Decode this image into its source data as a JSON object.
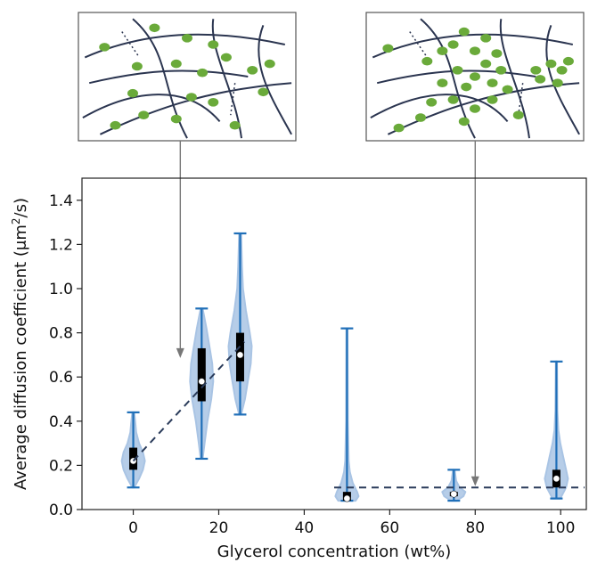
{
  "chart_data": {
    "type": "violin",
    "xlabel": "Glycerol concentration (wt%)",
    "ylabel": "Average diffusion coefficient (μm²/s)",
    "ylabel_parts": {
      "before": "Average diffusion coefficient (μm",
      "sup": "2",
      "after": "/s)"
    },
    "xlim": [
      -12,
      106
    ],
    "ylim": [
      0,
      1.5
    ],
    "xticks": [
      0,
      20,
      40,
      60,
      80,
      100
    ],
    "yticks": [
      0.0,
      0.2,
      0.4,
      0.6,
      0.8,
      1.0,
      1.2,
      1.4
    ],
    "violins": [
      {
        "x": 0,
        "min": 0.1,
        "max": 0.44,
        "q1": 0.18,
        "q3": 0.28,
        "median": 0.22,
        "body": [
          [
            0.1,
            0.5
          ],
          [
            0.14,
            3
          ],
          [
            0.18,
            5
          ],
          [
            0.22,
            6
          ],
          [
            0.26,
            5
          ],
          [
            0.3,
            3
          ],
          [
            0.35,
            1.5
          ],
          [
            0.4,
            1
          ],
          [
            0.44,
            0.5
          ]
        ]
      },
      {
        "x": 16,
        "min": 0.23,
        "max": 0.91,
        "q1": 0.49,
        "q3": 0.73,
        "median": 0.58,
        "body": [
          [
            0.23,
            0.5
          ],
          [
            0.3,
            1.5
          ],
          [
            0.4,
            3
          ],
          [
            0.5,
            5
          ],
          [
            0.58,
            6
          ],
          [
            0.66,
            5.5
          ],
          [
            0.74,
            4
          ],
          [
            0.82,
            2.5
          ],
          [
            0.91,
            0.5
          ]
        ]
      },
      {
        "x": 25,
        "min": 0.43,
        "max": 1.25,
        "q1": 0.58,
        "q3": 0.8,
        "median": 0.7,
        "body": [
          [
            0.43,
            0.5
          ],
          [
            0.5,
            2.5
          ],
          [
            0.58,
            4
          ],
          [
            0.66,
            5.5
          ],
          [
            0.74,
            6
          ],
          [
            0.8,
            5
          ],
          [
            0.9,
            3
          ],
          [
            1.0,
            1.5
          ],
          [
            1.1,
            1
          ],
          [
            1.25,
            0.5
          ]
        ]
      },
      {
        "x": 50,
        "min": 0.04,
        "max": 0.82,
        "q1": 0.04,
        "q3": 0.08,
        "median": 0.05,
        "body": [
          [
            0.04,
            3
          ],
          [
            0.06,
            4
          ],
          [
            0.08,
            3.5
          ],
          [
            0.12,
            2
          ],
          [
            0.17,
            1
          ],
          [
            0.22,
            0.6
          ],
          [
            0.4,
            0.3
          ],
          [
            0.82,
            0.2
          ]
        ]
      },
      {
        "x": 75,
        "min": 0.04,
        "max": 0.18,
        "q1": 0.06,
        "q3": 0.08,
        "median": 0.07,
        "body": [
          [
            0.04,
            1.5
          ],
          [
            0.06,
            5
          ],
          [
            0.08,
            6
          ],
          [
            0.1,
            3
          ],
          [
            0.13,
            1.2
          ],
          [
            0.18,
            0.4
          ]
        ]
      },
      {
        "x": 99,
        "min": 0.05,
        "max": 0.67,
        "q1": 0.1,
        "q3": 0.18,
        "median": 0.14,
        "body": [
          [
            0.05,
            2
          ],
          [
            0.1,
            5
          ],
          [
            0.14,
            6
          ],
          [
            0.18,
            5
          ],
          [
            0.24,
            3.5
          ],
          [
            0.3,
            2
          ],
          [
            0.36,
            1
          ],
          [
            0.45,
            0.5
          ],
          [
            0.67,
            0.3
          ]
        ]
      }
    ],
    "trend_lines": [
      {
        "points": [
          [
            0,
            0.22
          ],
          [
            26,
            0.76
          ]
        ]
      },
      {
        "points": [
          [
            47,
            0.1
          ],
          [
            106,
            0.1
          ]
        ]
      }
    ],
    "inset_arrows": [
      {
        "target": [
          11,
          0.69
        ]
      },
      {
        "target": [
          80,
          0.11
        ]
      }
    ]
  },
  "colors": {
    "violin_fill": "#a9c4e4",
    "whisker": "#1f6fb8",
    "box": "#000000",
    "median": "#ffffff",
    "trend": "#2a3b5a",
    "fiber": "#2b3550",
    "particle": "#6aaa3a",
    "inset_border": "#555555",
    "arrow": "#777777"
  }
}
